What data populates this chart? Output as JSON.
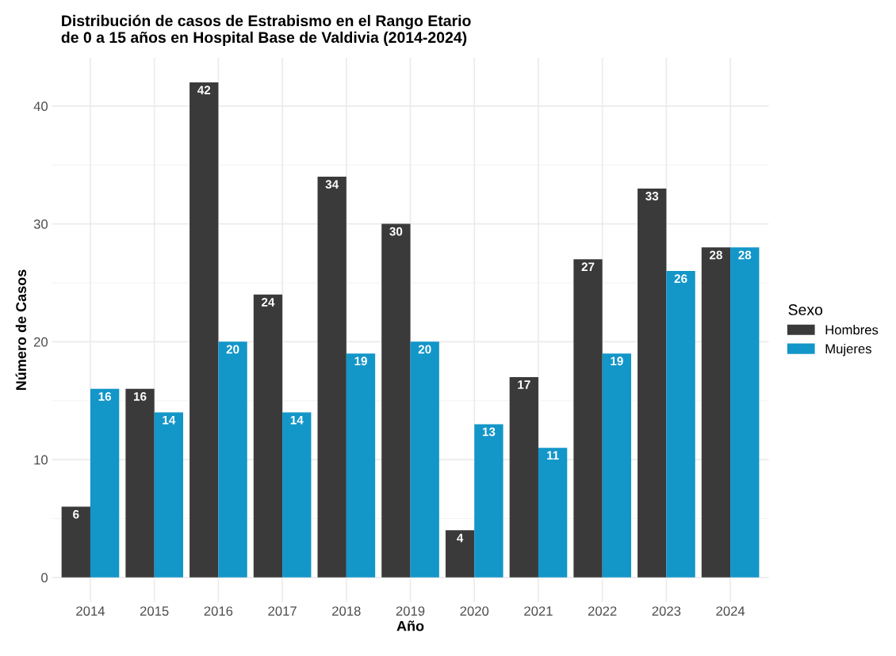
{
  "chart_data": {
    "type": "bar",
    "title": "Distribución de casos de Estrabismo en el Rango Etario\nde 0 a 15 años en Hospital Base de Valdivia (2014-2024)",
    "xlabel": "Año",
    "ylabel": "Número de Casos",
    "legend_title": "Sexo",
    "categories": [
      "2014",
      "2015",
      "2016",
      "2017",
      "2018",
      "2019",
      "2020",
      "2021",
      "2022",
      "2023",
      "2024"
    ],
    "series": [
      {
        "name": "Hombres",
        "color": "#3a3a3a",
        "values": [
          6,
          16,
          42,
          24,
          34,
          30,
          4,
          17,
          27,
          33,
          28
        ]
      },
      {
        "name": "Mujeres",
        "color": "#1396c8",
        "values": [
          16,
          14,
          20,
          14,
          19,
          20,
          13,
          11,
          19,
          26,
          28
        ]
      }
    ],
    "ylim": [
      -2.1,
      44.1
    ],
    "yticks": [
      0,
      10,
      20,
      30,
      40
    ],
    "grid": true,
    "legend": "right",
    "data_labels": true
  }
}
